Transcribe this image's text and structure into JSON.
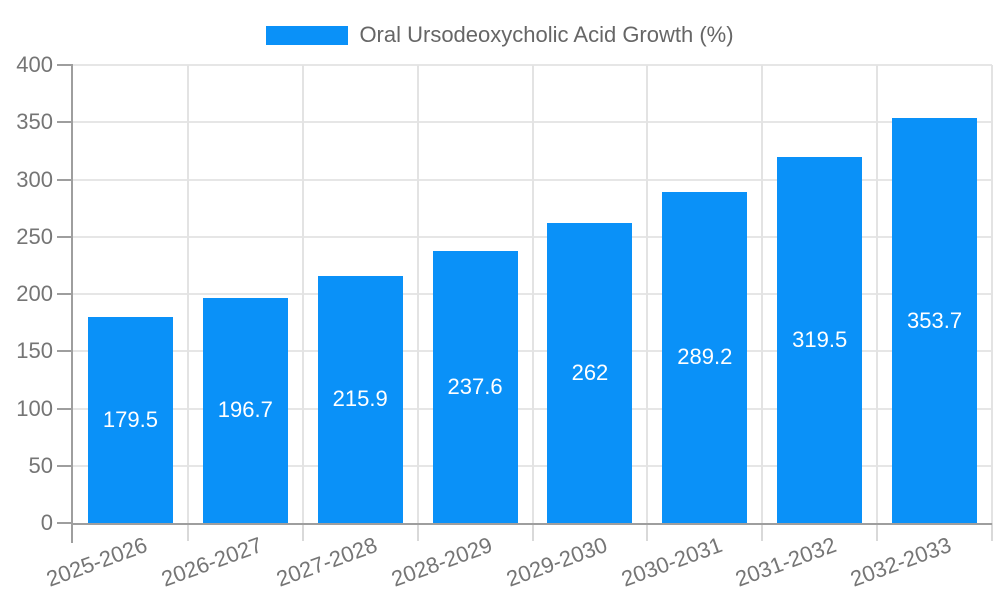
{
  "chart_data": {
    "type": "bar",
    "title": "Oral Ursodeoxycholic Acid Growth (%)",
    "series_name": "Oral Ursodeoxycholic Acid Growth (%)",
    "categories": [
      "2025-2026",
      "2026-2027",
      "2027-2028",
      "2028-2029",
      "2029-2030",
      "2030-2031",
      "2031-2032",
      "2032-2033"
    ],
    "values": [
      179.5,
      196.7,
      215.9,
      237.6,
      262,
      289.2,
      319.5,
      353.7
    ],
    "xlabel": "",
    "ylabel": "",
    "ylim": [
      0,
      400
    ],
    "y_ticks": [
      0,
      50,
      100,
      150,
      200,
      250,
      300,
      350,
      400
    ],
    "grid": true,
    "legend_position": "top-center",
    "bar_value_labels": "inside-center",
    "x_label_rotation_deg": -20
  },
  "colors": {
    "bar": "#0a91f8",
    "legend_text": "#666666",
    "axis_label": "#757575",
    "axis_line": "#9e9e9e",
    "gridline": "#e6e6e6",
    "gridline_v": "#e3e3e3",
    "tick_minor": "#d9d9d9",
    "bar_label_text": "#ffffff",
    "background": "#ffffff"
  }
}
